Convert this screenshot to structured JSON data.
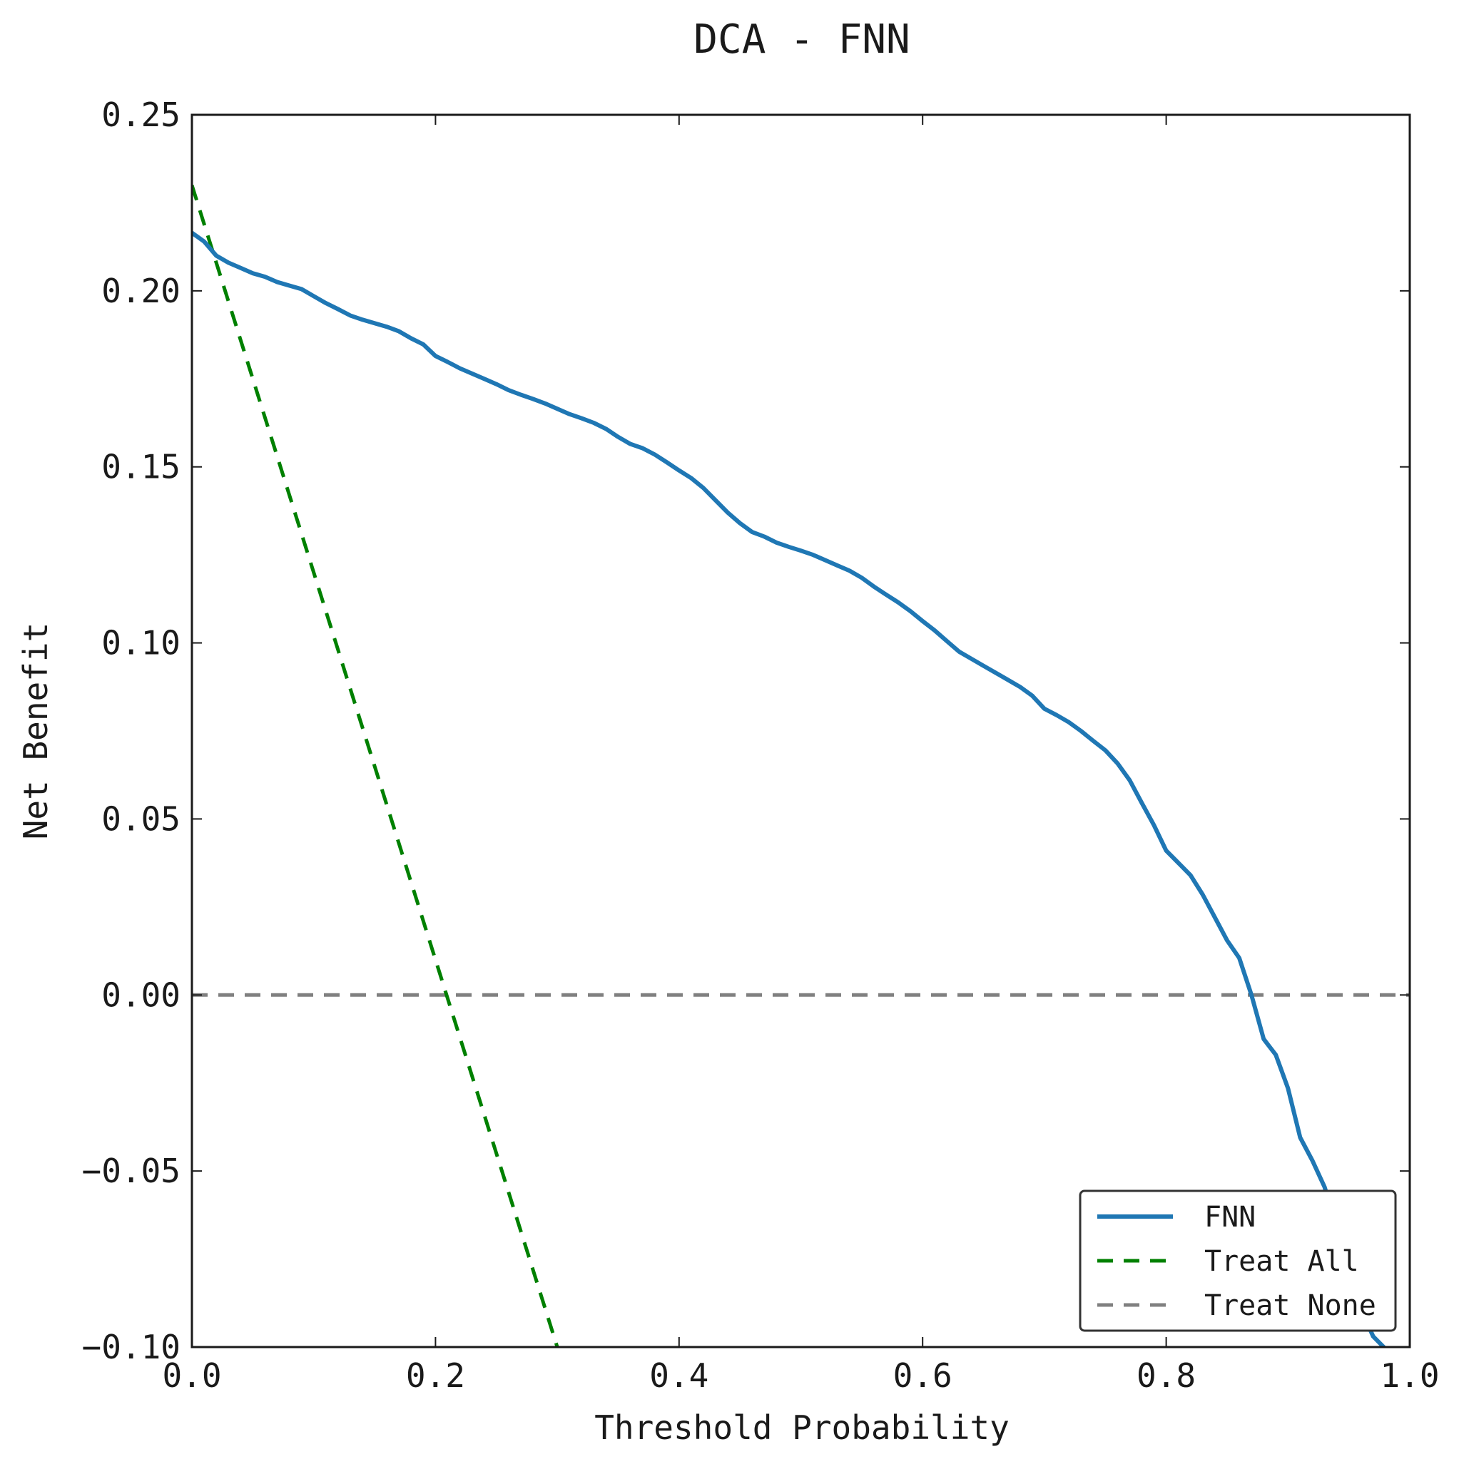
{
  "chart_data": {
    "type": "line",
    "title": "DCA - FNN",
    "xlabel": "Threshold Probability",
    "ylabel": "Net Benefit",
    "xlim": [
      0.0,
      1.0
    ],
    "ylim": [
      -0.1,
      0.25
    ],
    "x_ticks": [
      "0.0",
      "0.2",
      "0.4",
      "0.6",
      "0.8",
      "1.0"
    ],
    "y_ticks": [
      "0.25",
      "0.20",
      "0.15",
      "0.10",
      "0.05",
      "0.00",
      "−0.05",
      "−0.10"
    ],
    "x_tick_values": [
      0.0,
      0.2,
      0.4,
      0.6,
      0.8,
      1.0
    ],
    "y_tick_values": [
      0.25,
      0.2,
      0.15,
      0.1,
      0.05,
      0.0,
      -0.05,
      -0.1
    ],
    "grid": false,
    "legend_position": "lower-right",
    "series": [
      {
        "name": "FNN",
        "style": "solid",
        "color": "#1f77b4",
        "x": [
          0.0,
          0.01,
          0.02,
          0.03,
          0.04,
          0.05,
          0.06,
          0.07,
          0.08,
          0.09,
          0.1,
          0.11,
          0.12,
          0.13,
          0.14,
          0.15,
          0.16,
          0.17,
          0.18,
          0.19,
          0.2,
          0.21,
          0.22,
          0.23,
          0.24,
          0.25,
          0.26,
          0.27,
          0.28,
          0.29,
          0.3,
          0.31,
          0.32,
          0.33,
          0.34,
          0.35,
          0.36,
          0.37,
          0.38,
          0.39,
          0.4,
          0.41,
          0.42,
          0.43,
          0.44,
          0.45,
          0.46,
          0.47,
          0.48,
          0.49,
          0.5,
          0.51,
          0.52,
          0.53,
          0.54,
          0.55,
          0.56,
          0.57,
          0.58,
          0.59,
          0.6,
          0.61,
          0.62,
          0.63,
          0.64,
          0.65,
          0.66,
          0.67,
          0.68,
          0.69,
          0.7,
          0.71,
          0.72,
          0.73,
          0.74,
          0.75,
          0.76,
          0.77,
          0.78,
          0.79,
          0.8,
          0.81,
          0.82,
          0.83,
          0.84,
          0.85,
          0.86,
          0.87,
          0.88,
          0.89,
          0.9,
          0.91,
          0.92,
          0.93,
          0.94,
          0.95,
          0.96,
          0.97,
          0.98,
          0.99
        ],
        "y": [
          0.2165,
          0.214,
          0.21,
          0.208,
          0.2065,
          0.205,
          0.204,
          0.2025,
          0.2015,
          0.2005,
          0.1985,
          0.1965,
          0.1948,
          0.193,
          0.1918,
          0.1908,
          0.1898,
          0.1885,
          0.1865,
          0.1848,
          0.1815,
          0.1798,
          0.178,
          0.1765,
          0.175,
          0.1735,
          0.1718,
          0.1705,
          0.1693,
          0.168,
          0.1665,
          0.165,
          0.1638,
          0.1625,
          0.1608,
          0.1585,
          0.1565,
          0.1553,
          0.1535,
          0.1513,
          0.149,
          0.1468,
          0.144,
          0.1405,
          0.137,
          0.134,
          0.1315,
          0.1302,
          0.1285,
          0.1273,
          0.1262,
          0.125,
          0.1235,
          0.122,
          0.1205,
          0.1185,
          0.116,
          0.1137,
          0.1115,
          0.109,
          0.1062,
          0.1035,
          0.1005,
          0.0975,
          0.0955,
          0.0935,
          0.0915,
          0.0895,
          0.0875,
          0.085,
          0.0813,
          0.0795,
          0.0775,
          0.075,
          0.0722,
          0.0695,
          0.0658,
          0.061,
          0.0545,
          0.0482,
          0.041,
          0.0375,
          0.034,
          0.0285,
          0.022,
          0.0155,
          0.0105,
          0.0,
          -0.0125,
          -0.017,
          -0.0265,
          -0.0405,
          -0.047,
          -0.0545,
          -0.0655,
          -0.0755,
          -0.0895,
          -0.097,
          -0.1005,
          -0.108
        ]
      },
      {
        "name": "Treat All",
        "style": "dashed",
        "color": "#008000",
        "x": [
          0.0,
          0.3
        ],
        "y": [
          0.23,
          -0.1
        ]
      },
      {
        "name": "Treat None",
        "style": "dashed",
        "color": "#808080",
        "x": [
          0.0,
          1.0
        ],
        "y": [
          0.0,
          0.0
        ]
      }
    ]
  }
}
